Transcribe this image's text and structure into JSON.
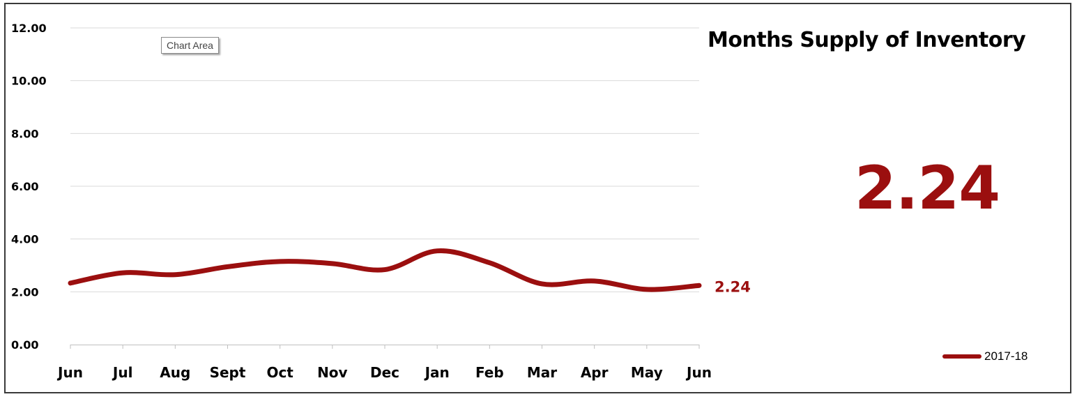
{
  "chart_data": {
    "type": "line",
    "title": "Months Supply of Inventory",
    "categories": [
      "Jun",
      "Jul",
      "Aug",
      "Sept",
      "Oct",
      "Nov",
      "Dec",
      "Jan",
      "Feb",
      "Mar",
      "Apr",
      "May",
      "Jun"
    ],
    "series": [
      {
        "name": "2017-18",
        "values": [
          2.33,
          2.72,
          2.65,
          2.95,
          3.15,
          3.07,
          2.84,
          3.55,
          3.1,
          2.3,
          2.41,
          2.09,
          2.24
        ],
        "color": "#9b0f0f"
      }
    ],
    "ylim": [
      0,
      12
    ],
    "yticks": [
      "0.00",
      "2.00",
      "4.00",
      "6.00",
      "8.00",
      "10.00",
      "12.00"
    ],
    "grid": true,
    "smooth": true,
    "data_label_last": "2.24",
    "legend_position": "bottom-right"
  },
  "headline_value": "2.24",
  "tooltip_text": "Chart Area"
}
